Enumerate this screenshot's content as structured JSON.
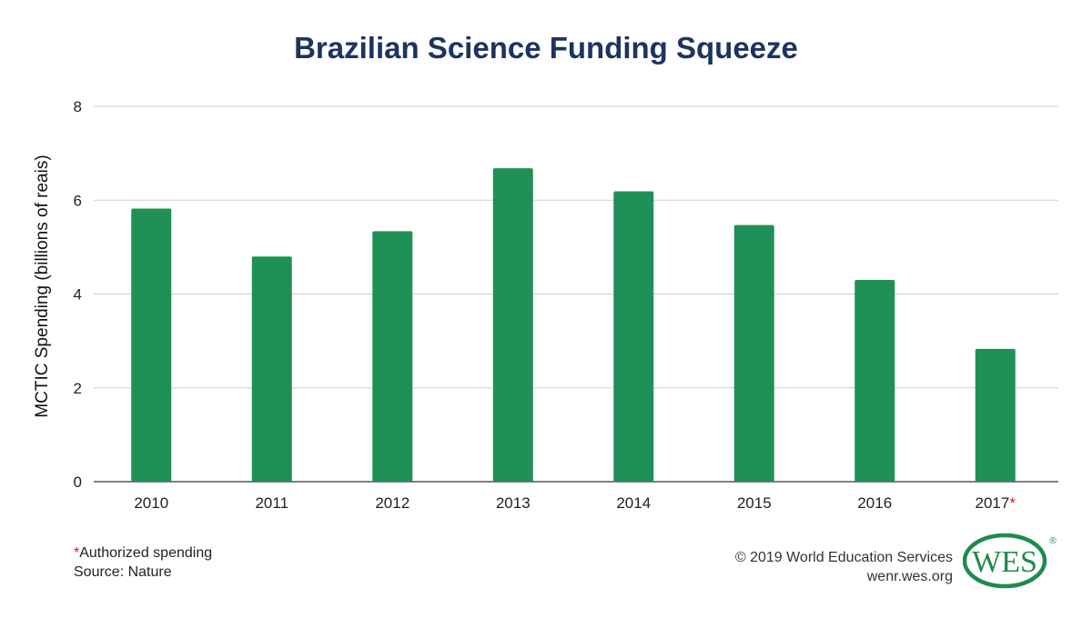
{
  "chart_data": {
    "type": "bar",
    "title": "Brazilian Science Funding Squeeze",
    "ylabel": "MCTIC Spending (billions of reais)",
    "xlabel": "",
    "categories": [
      "2010",
      "2011",
      "2012",
      "2013",
      "2014",
      "2015",
      "2016",
      "2017"
    ],
    "category_marker": "*",
    "marked_category_index": 7,
    "values": [
      5.82,
      4.8,
      5.34,
      6.68,
      6.19,
      5.47,
      4.3,
      2.83
    ],
    "ylim": [
      0,
      8
    ],
    "yticks": [
      0,
      2,
      4,
      6,
      8
    ],
    "grid": true,
    "bar_color": "#1f9156"
  },
  "footnote": {
    "marker": "*",
    "text": "Authorized spending",
    "source": "Source: Nature"
  },
  "credits": {
    "copyright": "© 2019 World Education Services",
    "url": "wenr.wes.org"
  },
  "logo": {
    "text": "WES",
    "registered": "®",
    "color": "#1f8a4c"
  }
}
